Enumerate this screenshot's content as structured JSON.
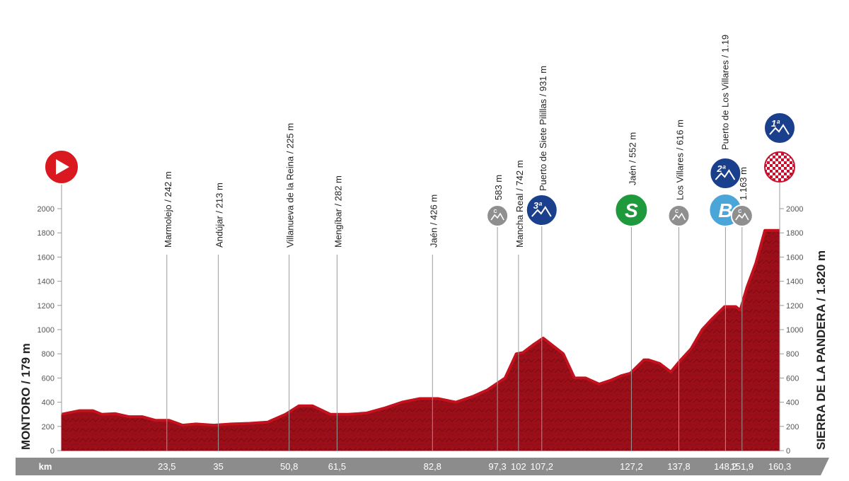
{
  "chart_data": {
    "type": "area",
    "title": "",
    "xlabel": "km",
    "ylabel": "",
    "ylim": [
      0,
      2000
    ],
    "xlim": [
      0,
      160.3
    ],
    "grid": false,
    "y_ticks": [
      "0",
      "200",
      "400",
      "600",
      "800",
      "1000",
      "1200",
      "1400",
      "1600",
      "1800",
      "2000"
    ],
    "x_tick_labels": [
      "23,5",
      "35",
      "50,8",
      "61,5",
      "82,8",
      "97,3",
      "102",
      "107,2",
      "127,2",
      "137,8",
      "148,2",
      "151,9",
      "160,3"
    ],
    "start_label": "MONTORO / 179 m",
    "finish_label": "SIERRA DE LA PANDERA / 1.820 m",
    "waypoints": [
      {
        "km": 23.5,
        "label": "Marmolejo / 242 m",
        "badge": "none"
      },
      {
        "km": 35,
        "label": "Andújar / 213 m",
        "badge": "none"
      },
      {
        "km": 50.8,
        "label": "Villanueva de la Reina / 225 m",
        "badge": "none"
      },
      {
        "km": 61.5,
        "label": "Mengíbar / 282 m",
        "badge": "none"
      },
      {
        "km": 82.8,
        "label": "Jaén / 426 m",
        "badge": "none"
      },
      {
        "km": 97.3,
        "label": "583 m",
        "badge": "cat-unclassified"
      },
      {
        "km": 102,
        "label": "Mancha Real / 742 m",
        "badge": "none"
      },
      {
        "km": 107.2,
        "label": "Puerto de Siete Pilillas / 931 m",
        "badge": "cat-3",
        "badge_text": "3ª"
      },
      {
        "km": 127.2,
        "label": "Jaén / 552 m",
        "badge": "sprint",
        "badge_text": "S"
      },
      {
        "km": 137.8,
        "label": "Los Villares / 616 m",
        "badge": "cat-unclassified"
      },
      {
        "km": 148.2,
        "label": "Puerto de Los Villares / 1.19",
        "badge": "cat-2-bonus",
        "badge_text": "2ª",
        "bonus_text": "B"
      },
      {
        "km": 151.9,
        "label": "1.163 m",
        "badge": "cat-unclassified"
      },
      {
        "km": 160.3,
        "label": "",
        "badge": "cat-1-finish",
        "badge_text": "1ª"
      }
    ],
    "profile": {
      "x": [
        0,
        4,
        7,
        9,
        12,
        15,
        18,
        21,
        24,
        27,
        30,
        34,
        38,
        42,
        46,
        50,
        53,
        56,
        60,
        64,
        68,
        72,
        76,
        80,
        84,
        88,
        92,
        95,
        99,
        101.5,
        103,
        105.5,
        107.5,
        112,
        114.5,
        117,
        120,
        122.5,
        125,
        127,
        130,
        131,
        133.5,
        136,
        138,
        140.5,
        143,
        145,
        148,
        150.5,
        151.5,
        153,
        155,
        157,
        158.5,
        160.3
      ],
      "y": [
        300,
        330,
        330,
        300,
        305,
        280,
        280,
        250,
        250,
        210,
        220,
        210,
        220,
        225,
        235,
        300,
        370,
        370,
        300,
        300,
        310,
        350,
        400,
        430,
        430,
        400,
        450,
        500,
        600,
        800,
        810,
        880,
        930,
        800,
        600,
        600,
        550,
        580,
        620,
        640,
        750,
        750,
        720,
        650,
        740,
        840,
        1000,
        1080,
        1190,
        1190,
        1160,
        1350,
        1550,
        1820,
        1820,
        1820
      ]
    },
    "colors": {
      "area": "#9c0e18",
      "area_dark": "#6e0811",
      "start": "#d9181f",
      "cat": "#1a3f8c",
      "bonus": "#4aa6d9",
      "sprint": "#1e9a3c",
      "unclassified": "#8f8f8f",
      "axis_band": "#8c8c8c"
    }
  }
}
